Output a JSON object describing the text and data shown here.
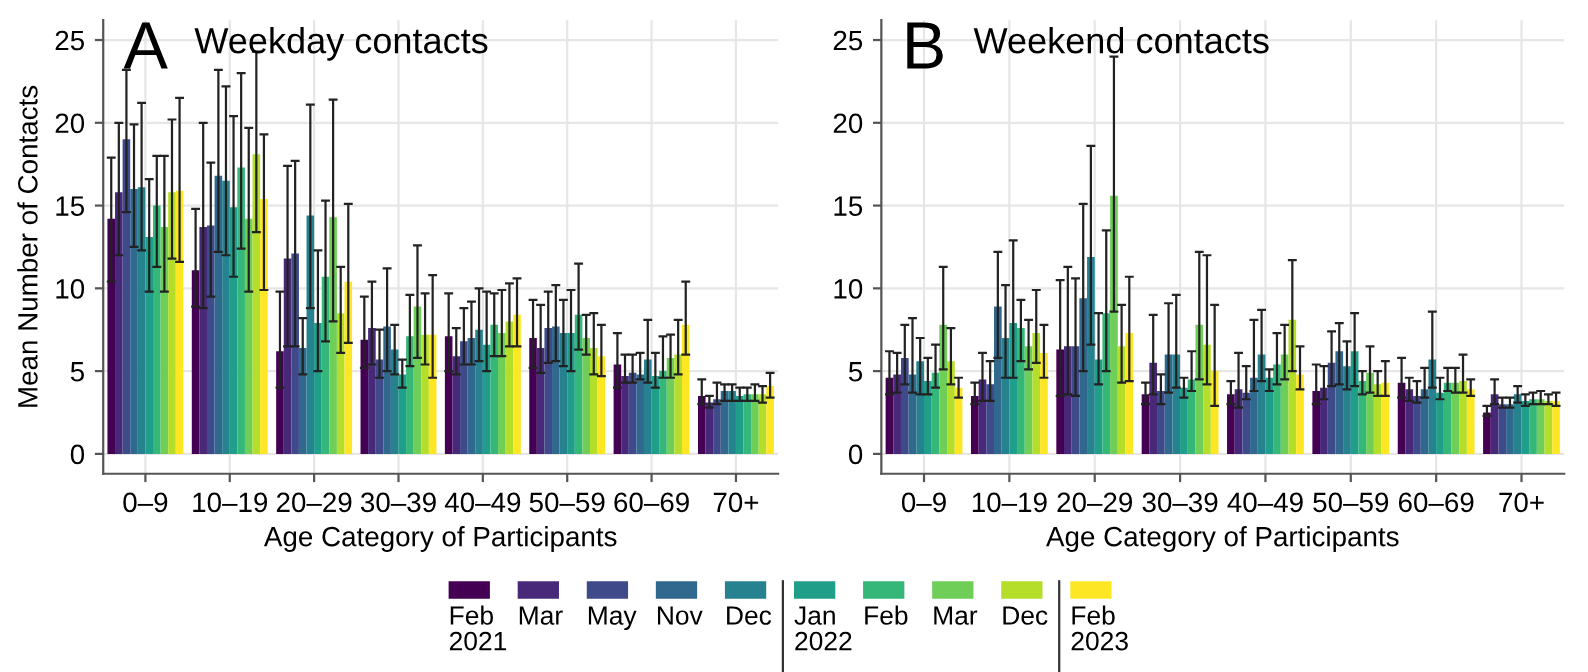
{
  "chart_data": [
    {
      "type": "bar",
      "title": "Weekday contacts",
      "annotations": [
        "A"
      ],
      "xlabel": "Age Category of Participants",
      "ylabel": "Mean Number of Contacts",
      "categories": [
        "0–9",
        "10–19",
        "20–29",
        "30–39",
        "40–49",
        "50–59",
        "60–69",
        "70+"
      ],
      "ylim": [
        -1.2,
        26.2
      ],
      "yticks": [
        0,
        5,
        10,
        15,
        20,
        25
      ],
      "grid": true,
      "legend": "bottom",
      "series": [
        {
          "name": "Feb\n2021",
          "color": "#440154",
          "values": [
            14.2,
            11.1,
            6.2,
            6.9,
            7.1,
            7.0,
            5.4,
            3.5
          ],
          "errors": [
            [
              10.4,
              17.9
            ],
            [
              8.9,
              14.8
            ],
            [
              4.0,
              9.8
            ],
            [
              5.2,
              9.5
            ],
            [
              5.0,
              9.7
            ],
            [
              5.2,
              9.3
            ],
            [
              4.0,
              7.3
            ],
            [
              3.0,
              4.5
            ]
          ]
        },
        {
          "name": "Mar",
          "color": "#482878",
          "values": [
            15.8,
            13.7,
            11.8,
            7.6,
            5.9,
            6.4,
            4.7,
            3.1
          ],
          "errors": [
            [
              12.0,
              20.0
            ],
            [
              8.8,
              20.0
            ],
            [
              6.5,
              17.4
            ],
            [
              5.4,
              10.4
            ],
            [
              4.8,
              7.6
            ],
            [
              4.9,
              9.0
            ],
            [
              4.3,
              6.0
            ],
            [
              2.8,
              3.5
            ]
          ]
        },
        {
          "name": "May",
          "color": "#3e4a89",
          "values": [
            19.0,
            13.8,
            12.1,
            5.7,
            6.8,
            7.6,
            4.9,
            3.3
          ],
          "errors": [
            [
              14.6,
              23.2
            ],
            [
              9.5,
              17.6
            ],
            [
              6.5,
              17.7
            ],
            [
              4.6,
              7.5
            ],
            [
              5.4,
              8.8
            ],
            [
              5.5,
              9.8
            ],
            [
              4.3,
              6.0
            ],
            [
              3.0,
              4.3
            ]
          ]
        },
        {
          "name": "Nov",
          "color": "#31688e",
          "values": [
            16.0,
            16.8,
            6.4,
            7.7,
            7.0,
            7.7,
            4.8,
            3.8
          ],
          "errors": [
            [
              12.5,
              19.9
            ],
            [
              12.2,
              23.2
            ],
            [
              4.8,
              8.2
            ],
            [
              5.0,
              11.2
            ],
            [
              5.4,
              9.2
            ],
            [
              5.6,
              10.2
            ],
            [
              4.5,
              6.1
            ],
            [
              3.2,
              4.2
            ]
          ]
        },
        {
          "name": "Dec",
          "color": "#26828e",
          "values": [
            16.1,
            16.5,
            14.4,
            6.3,
            7.5,
            7.3,
            5.7,
            3.8
          ],
          "errors": [
            [
              12.3,
              21.2
            ],
            [
              12.0,
              22.2
            ],
            [
              8.8,
              21.1
            ],
            [
              4.8,
              7.8
            ],
            [
              5.6,
              10.0
            ],
            [
              5.3,
              9.3
            ],
            [
              4.3,
              8.1
            ],
            [
              3.2,
              4.2
            ]
          ]
        },
        {
          "name": "Jan\n2022",
          "color": "#1f9e89",
          "values": [
            13.1,
            14.9,
            7.9,
            4.8,
            6.6,
            7.3,
            4.7,
            3.5
          ],
          "errors": [
            [
              9.8,
              16.6
            ],
            [
              10.7,
              20.4
            ],
            [
              5.0,
              12.3
            ],
            [
              4.0,
              5.7
            ],
            [
              5.0,
              9.8
            ],
            [
              5.0,
              9.9
            ],
            [
              4.0,
              6.1
            ],
            [
              3.2,
              4.0
            ]
          ]
        },
        {
          "name": "Feb",
          "color": "#35b779",
          "values": [
            15.0,
            17.3,
            10.7,
            7.1,
            7.8,
            8.4,
            5.0,
            3.6
          ],
          "errors": [
            [
              11.3,
              18.0
            ],
            [
              12.4,
              23.0
            ],
            [
              6.8,
              15.3
            ],
            [
              5.3,
              9.6
            ],
            [
              5.9,
              9.7
            ],
            [
              6.3,
              11.5
            ],
            [
              4.6,
              7.1
            ],
            [
              3.2,
              4.0
            ]
          ]
        },
        {
          "name": "Mar",
          "color": "#6ece58",
          "values": [
            13.7,
            14.2,
            14.3,
            8.9,
            7.3,
            7.0,
            5.8,
            3.6
          ],
          "errors": [
            [
              9.8,
              18.0
            ],
            [
              9.8,
              19.7
            ],
            [
              8.0,
              21.4
            ],
            [
              5.8,
              12.6
            ],
            [
              5.9,
              9.9
            ],
            [
              6.0,
              8.4
            ],
            [
              4.6,
              7.2
            ],
            [
              3.2,
              4.2
            ]
          ]
        },
        {
          "name": "Dec",
          "color": "#b5de2b",
          "values": [
            15.8,
            18.1,
            8.5,
            7.2,
            8.0,
            6.4,
            6.0,
            3.6
          ],
          "errors": [
            [
              11.8,
              20.2
            ],
            [
              13.4,
              24.3
            ],
            [
              6.1,
              11.3
            ],
            [
              5.4,
              9.7
            ],
            [
              6.5,
              10.3
            ],
            [
              4.8,
              8.5
            ],
            [
              4.8,
              8.1
            ],
            [
              3.1,
              4.1
            ]
          ]
        },
        {
          "name": "Feb\n2023",
          "color": "#fde725",
          "values": [
            15.9,
            15.4,
            10.4,
            7.2,
            8.4,
            5.9,
            7.8,
            4.1
          ],
          "errors": [
            [
              11.6,
              21.5
            ],
            [
              9.9,
              19.3
            ],
            [
              6.7,
              15.1
            ],
            [
              4.6,
              10.8
            ],
            [
              6.5,
              10.6
            ],
            [
              4.7,
              7.8
            ],
            [
              6.0,
              10.4
            ],
            [
              3.4,
              4.9
            ]
          ]
        }
      ]
    },
    {
      "type": "bar",
      "title": "Weekend contacts",
      "annotations": [
        "B"
      ],
      "xlabel": "Age Category of Participants",
      "categories": [
        "0–9",
        "10–19",
        "20–29",
        "30–39",
        "40–49",
        "50–59",
        "60–69",
        "70+"
      ],
      "ylim": [
        -1.2,
        26.2
      ],
      "yticks": [
        0,
        5,
        10,
        15,
        20,
        25
      ],
      "grid": true,
      "series": [
        {
          "color": "#440154",
          "values": [
            4.6,
            3.5,
            6.3,
            3.6,
            3.6,
            3.8,
            4.3,
            2.5
          ],
          "errors": [
            [
              3.6,
              6.2
            ],
            [
              3.0,
              4.3
            ],
            [
              3.5,
              10.5
            ],
            [
              3.0,
              4.3
            ],
            [
              3.0,
              4.4
            ],
            [
              3.0,
              5.4
            ],
            [
              3.4,
              5.8
            ],
            [
              2.3,
              2.9
            ]
          ]
        },
        {
          "color": "#482878",
          "values": [
            4.8,
            4.5,
            6.5,
            5.5,
            3.9,
            4.0,
            3.9,
            3.6
          ],
          "errors": [
            [
              3.7,
              6.1
            ],
            [
              3.2,
              6.1
            ],
            [
              3.6,
              11.3
            ],
            [
              3.6,
              8.4
            ],
            [
              2.8,
              6.1
            ],
            [
              3.3,
              5.3
            ],
            [
              3.2,
              4.6
            ],
            [
              3.0,
              4.5
            ]
          ]
        },
        {
          "color": "#3e4a89",
          "values": [
            5.8,
            4.2,
            6.5,
            3.8,
            3.7,
            5.5,
            3.5,
            3.0
          ],
          "errors": [
            [
              4.2,
              7.8
            ],
            [
              3.2,
              5.6
            ],
            [
              3.5,
              10.6
            ],
            [
              3.0,
              4.8
            ],
            [
              3.3,
              5.3
            ],
            [
              4.1,
              7.4
            ],
            [
              3.1,
              4.4
            ],
            [
              2.8,
              3.4
            ]
          ]
        },
        {
          "color": "#31688e",
          "values": [
            4.8,
            8.9,
            9.4,
            6.0,
            4.6,
            6.2,
            3.9,
            3.0
          ],
          "errors": [
            [
              3.7,
              8.2
            ],
            [
              5.8,
              12.2
            ],
            [
              5.0,
              15.1
            ],
            [
              3.7,
              9.1
            ],
            [
              3.8,
              8.1
            ],
            [
              4.2,
              7.9
            ],
            [
              3.4,
              5.2
            ],
            [
              2.8,
              3.4
            ]
          ]
        },
        {
          "color": "#26828e",
          "values": [
            5.6,
            7.0,
            11.9,
            6.0,
            6.0,
            5.3,
            5.7,
            3.6
          ],
          "errors": [
            [
              3.6,
              7.0
            ],
            [
              4.6,
              10.2
            ],
            [
              6.6,
              18.6
            ],
            [
              4.0,
              9.6
            ],
            [
              4.4,
              8.7
            ],
            [
              3.9,
              6.8
            ],
            [
              4.0,
              8.6
            ],
            [
              3.1,
              4.1
            ]
          ]
        },
        {
          "color": "#1f9e89",
          "values": [
            4.4,
            7.9,
            5.7,
            4.0,
            4.6,
            6.2,
            3.7,
            3.2
          ],
          "errors": [
            [
              3.6,
              5.8
            ],
            [
              4.6,
              12.9
            ],
            [
              4.2,
              8.5
            ],
            [
              3.4,
              4.6
            ],
            [
              3.8,
              5.1
            ],
            [
              4.1,
              8.5
            ],
            [
              3.3,
              4.6
            ],
            [
              2.9,
              3.6
            ]
          ]
        },
        {
          "color": "#35b779",
          "values": [
            4.9,
            7.6,
            8.5,
            4.5,
            5.4,
            4.4,
            4.3,
            3.3
          ],
          "errors": [
            [
              4.0,
              6.6
            ],
            [
              5.6,
              9.3
            ],
            [
              5.0,
              13.5
            ],
            [
              3.8,
              6.2
            ],
            [
              4.2,
              7.3
            ],
            [
              3.6,
              5.0
            ],
            [
              3.8,
              5.2
            ],
            [
              3.0,
              3.7
            ]
          ]
        },
        {
          "color": "#6ece58",
          "values": [
            7.8,
            6.5,
            15.6,
            7.8,
            6.0,
            4.9,
            4.3,
            3.3
          ],
          "errors": [
            [
              5.1,
              11.3
            ],
            [
              5.1,
              8.1
            ],
            [
              8.6,
              24.0
            ],
            [
              4.5,
              12.2
            ],
            [
              4.5,
              7.8
            ],
            [
              3.7,
              6.5
            ],
            [
              3.7,
              5.2
            ],
            [
              3.0,
              3.8
            ]
          ]
        },
        {
          "color": "#b5de2b",
          "values": [
            5.6,
            7.3,
            6.5,
            6.6,
            8.1,
            4.2,
            4.4,
            3.2
          ],
          "errors": [
            [
              4.2,
              7.6
            ],
            [
              5.5,
              9.9
            ],
            [
              4.3,
              9.0
            ],
            [
              4.2,
              12.0
            ],
            [
              5.0,
              11.7
            ],
            [
              3.5,
              5.0
            ],
            [
              3.7,
              6.0
            ],
            [
              3.0,
              3.6
            ]
          ]
        },
        {
          "color": "#fde725",
          "values": [
            4.0,
            6.1,
            7.3,
            5.0,
            4.8,
            4.3,
            3.9,
            3.2
          ],
          "errors": [
            [
              3.4,
              4.6
            ],
            [
              4.6,
              7.8
            ],
            [
              4.4,
              10.7
            ],
            [
              2.9,
              9.0
            ],
            [
              3.9,
              6.5
            ],
            [
              3.5,
              5.6
            ],
            [
              3.5,
              4.5
            ],
            [
              2.9,
              3.7
            ]
          ]
        }
      ]
    }
  ]
}
